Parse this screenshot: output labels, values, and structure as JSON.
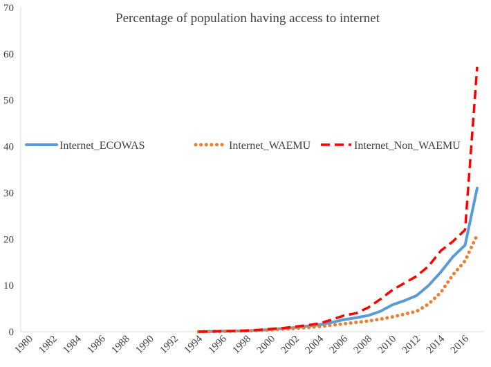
{
  "chart_data": {
    "type": "line",
    "title": "Percentage of population having access to internet",
    "xlabel": "",
    "ylabel": "",
    "x": [
      1980,
      1981,
      1982,
      1983,
      1984,
      1985,
      1986,
      1987,
      1988,
      1989,
      1990,
      1991,
      1992,
      1993,
      1994,
      1995,
      1996,
      1997,
      1998,
      1999,
      2000,
      2001,
      2002,
      2003,
      2004,
      2005,
      2006,
      2007,
      2008,
      2009,
      2010,
      2011,
      2012,
      2013,
      2014,
      2015,
      2016,
      2017
    ],
    "x_tick_labels": [
      "1980",
      "1982",
      "1984",
      "1986",
      "1988",
      "1990",
      "1992",
      "1994",
      "1996",
      "1998",
      "2000",
      "2002",
      "2004",
      "2006",
      "2008",
      "2010",
      "2012",
      "2014",
      "2016"
    ],
    "ylim": [
      0,
      70
    ],
    "y_ticks": [
      0,
      10,
      20,
      30,
      40,
      50,
      60,
      70
    ],
    "grid": false,
    "legend_position": "middle-left",
    "series": [
      {
        "name": "Internet_ECOWAS",
        "color": "#5b9bd5",
        "style": "solid",
        "values": [
          null,
          null,
          null,
          null,
          null,
          null,
          null,
          null,
          null,
          null,
          null,
          null,
          null,
          null,
          0,
          0.05,
          0.1,
          0.15,
          0.2,
          0.3,
          0.5,
          0.7,
          0.9,
          1.2,
          1.5,
          2.0,
          2.6,
          3.0,
          3.5,
          4.4,
          5.8,
          6.7,
          7.8,
          10.0,
          12.9,
          16.2,
          18.7,
          31.0
        ]
      },
      {
        "name": "Internet_WAEMU",
        "color": "#ed7d31",
        "style": "dotted",
        "values": [
          null,
          null,
          null,
          null,
          null,
          null,
          null,
          null,
          null,
          null,
          null,
          null,
          null,
          null,
          0,
          0.05,
          0.08,
          0.12,
          0.18,
          0.25,
          0.4,
          0.55,
          0.7,
          0.9,
          1.1,
          1.4,
          1.7,
          2.0,
          2.3,
          2.7,
          3.2,
          3.8,
          4.4,
          6.0,
          8.5,
          12.3,
          15.3,
          20.9
        ]
      },
      {
        "name": "Internet_Non_WAEMU",
        "color": "#ff0000",
        "style": "dashed",
        "values": [
          null,
          null,
          null,
          null,
          null,
          null,
          null,
          null,
          null,
          null,
          null,
          null,
          null,
          null,
          0,
          0.05,
          0.1,
          0.15,
          0.25,
          0.4,
          0.6,
          0.8,
          1.1,
          1.4,
          1.8,
          2.6,
          3.5,
          4.0,
          5.2,
          7.0,
          9.0,
          10.5,
          12.0,
          14.2,
          17.5,
          19.5,
          22.0,
          57.2
        ]
      }
    ]
  }
}
